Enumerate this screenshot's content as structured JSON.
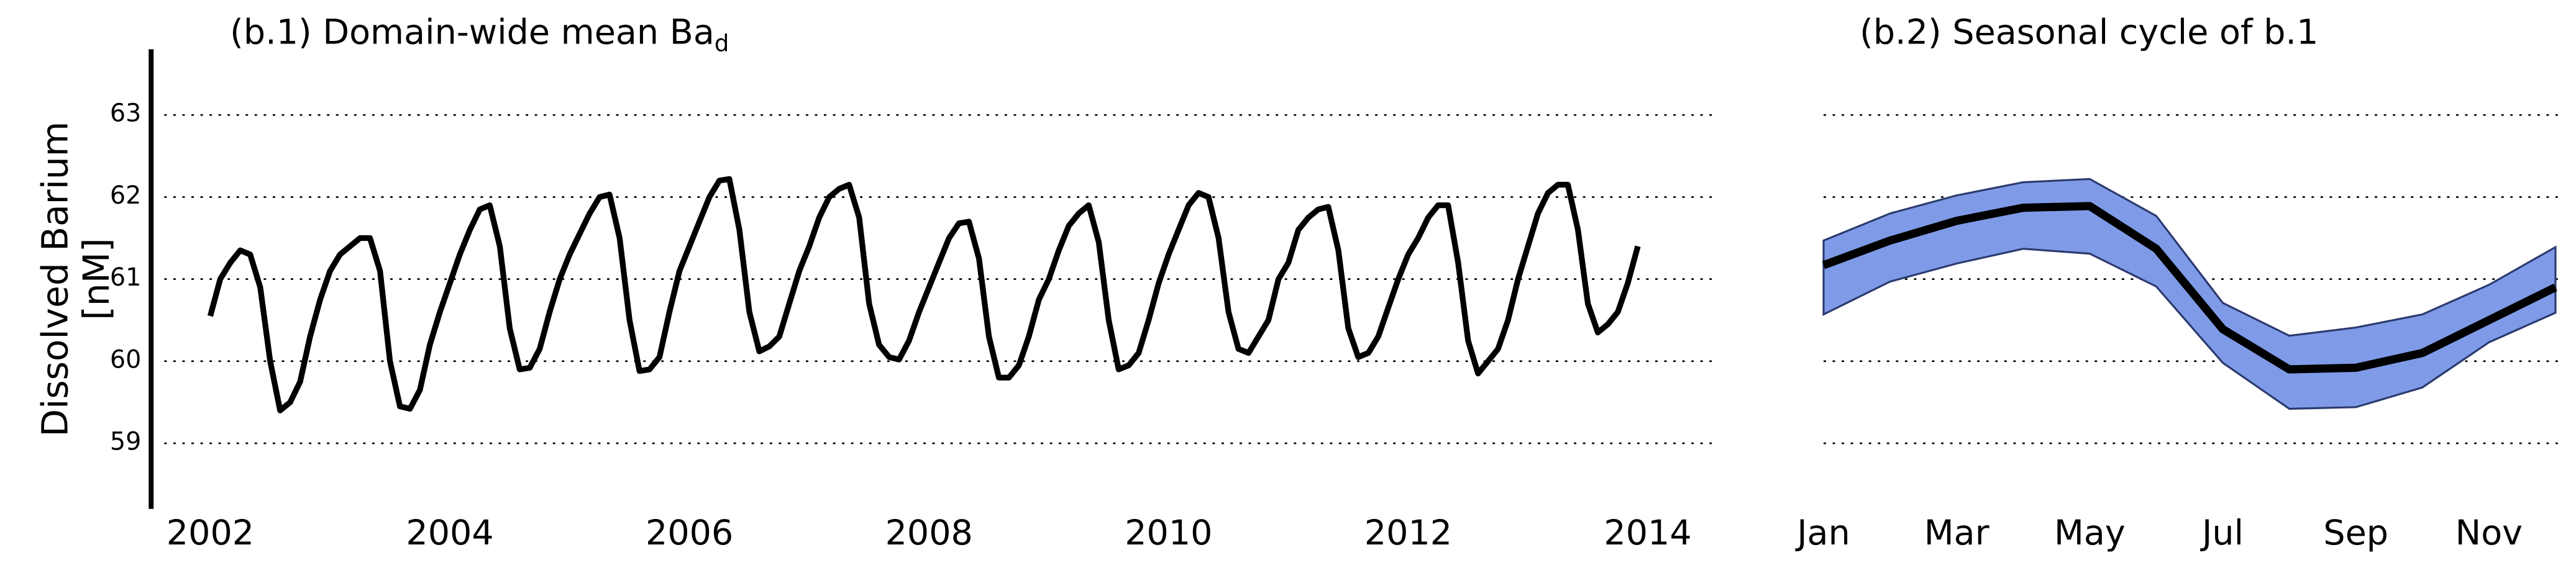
{
  "chart_data": [
    {
      "type": "line",
      "title": "(b.1) Domain-wide mean Ba",
      "title_subscript": "d",
      "ylabel": [
        "Dissolved Barium",
        "[nM]"
      ],
      "color": "#000000",
      "x": [
        2002.0,
        2002.083,
        2002.167,
        2002.25,
        2002.333,
        2002.417,
        2002.5,
        2002.583,
        2002.667,
        2002.75,
        2002.833,
        2002.917,
        2003.0,
        2003.083,
        2003.167,
        2003.25,
        2003.333,
        2003.417,
        2003.5,
        2003.583,
        2003.667,
        2003.75,
        2003.833,
        2003.917,
        2004.0,
        2004.083,
        2004.167,
        2004.25,
        2004.333,
        2004.417,
        2004.5,
        2004.583,
        2004.667,
        2004.75,
        2004.833,
        2004.917,
        2005.0,
        2005.083,
        2005.167,
        2005.25,
        2005.333,
        2005.417,
        2005.5,
        2005.583,
        2005.667,
        2005.75,
        2005.833,
        2005.917,
        2006.0,
        2006.083,
        2006.167,
        2006.25,
        2006.333,
        2006.417,
        2006.5,
        2006.583,
        2006.667,
        2006.75,
        2006.833,
        2006.917,
        2007.0,
        2007.083,
        2007.167,
        2007.25,
        2007.333,
        2007.417,
        2007.5,
        2007.583,
        2007.667,
        2007.75,
        2007.833,
        2007.917,
        2008.0,
        2008.083,
        2008.167,
        2008.25,
        2008.333,
        2008.417,
        2008.5,
        2008.583,
        2008.667,
        2008.75,
        2008.833,
        2008.917,
        2009.0,
        2009.083,
        2009.167,
        2009.25,
        2009.333,
        2009.417,
        2009.5,
        2009.583,
        2009.667,
        2009.75,
        2009.833,
        2009.917,
        2010.0,
        2010.083,
        2010.167,
        2010.25,
        2010.333,
        2010.417,
        2010.5,
        2010.583,
        2010.667,
        2010.75,
        2010.833,
        2010.917,
        2011.0,
        2011.083,
        2011.167,
        2011.25,
        2011.333,
        2011.417,
        2011.5,
        2011.583,
        2011.667,
        2011.75,
        2011.833,
        2011.917,
        2012.0,
        2012.083,
        2012.167,
        2012.25,
        2012.333,
        2012.417,
        2012.5,
        2012.583,
        2012.667,
        2012.75,
        2012.833,
        2012.917,
        2013.0,
        2013.083,
        2013.167,
        2013.25,
        2013.333,
        2013.417,
        2013.5,
        2013.583,
        2013.667,
        2013.75,
        2013.833,
        2013.917
      ],
      "values": [
        60.55,
        61.0,
        61.2,
        61.35,
        61.3,
        60.9,
        60.0,
        59.4,
        59.5,
        59.75,
        60.3,
        60.75,
        61.1,
        61.3,
        61.4,
        61.5,
        61.5,
        61.1,
        60.0,
        59.45,
        59.42,
        59.65,
        60.2,
        60.6,
        60.95,
        61.3,
        61.6,
        61.85,
        61.9,
        61.4,
        60.4,
        59.9,
        59.92,
        60.15,
        60.6,
        61.0,
        61.3,
        61.55,
        61.8,
        62.0,
        62.03,
        61.5,
        60.5,
        59.88,
        59.9,
        60.05,
        60.6,
        61.1,
        61.4,
        61.7,
        62.0,
        62.2,
        62.22,
        61.6,
        60.6,
        60.12,
        60.18,
        60.3,
        60.7,
        61.1,
        61.4,
        61.75,
        62.0,
        62.1,
        62.15,
        61.75,
        60.7,
        60.2,
        60.05,
        60.02,
        60.25,
        60.6,
        60.9,
        61.2,
        61.5,
        61.68,
        61.7,
        61.25,
        60.3,
        59.8,
        59.8,
        59.95,
        60.3,
        60.75,
        61.0,
        61.35,
        61.65,
        61.8,
        61.9,
        61.45,
        60.5,
        59.9,
        59.95,
        60.1,
        60.5,
        60.95,
        61.3,
        61.6,
        61.9,
        62.05,
        62.0,
        61.5,
        60.6,
        60.15,
        60.1,
        60.3,
        60.5,
        61.0,
        61.2,
        61.6,
        61.75,
        61.85,
        61.88,
        61.35,
        60.4,
        60.05,
        60.1,
        60.3,
        60.65,
        61.0,
        61.3,
        61.5,
        61.75,
        61.9,
        61.9,
        61.2,
        60.25,
        59.85,
        60.0,
        60.15,
        60.5,
        61.0,
        61.4,
        61.8,
        62.05,
        62.15,
        62.15,
        61.6,
        60.7,
        60.35,
        60.45,
        60.6,
        60.95,
        61.4
      ],
      "xlim": [
        2002,
        2014
      ],
      "xticks": [
        2002,
        2004,
        2006,
        2008,
        2010,
        2012,
        2014
      ],
      "ylim": [
        58.2,
        63.8
      ],
      "yticks": [
        59,
        60,
        61,
        62,
        63
      ],
      "grid": true
    },
    {
      "type": "band-line",
      "title": "(b.2) Seasonal cycle of b.1",
      "categories": [
        "Jan",
        null,
        "Mar",
        null,
        "May",
        null,
        "Jul",
        null,
        "Sep",
        null,
        "Nov",
        null
      ],
      "values": [
        61.17,
        61.47,
        61.71,
        61.87,
        61.89,
        61.37,
        60.39,
        59.9,
        59.92,
        60.1,
        60.5,
        60.9
      ],
      "color": "#000000",
      "band": {
        "color": "#7f9be8",
        "upper": [
          61.47,
          61.8,
          62.02,
          62.18,
          62.22,
          61.77,
          60.71,
          60.31,
          60.41,
          60.57,
          60.93,
          61.39
        ],
        "lower": [
          60.57,
          60.97,
          61.19,
          61.37,
          61.31,
          60.91,
          59.98,
          59.42,
          59.44,
          59.68,
          60.23,
          60.59
        ]
      },
      "ylim": [
        58.2,
        63.8
      ],
      "yticks": [
        59,
        60,
        61,
        62,
        63
      ],
      "grid": true,
      "ytick_labels": false
    }
  ]
}
